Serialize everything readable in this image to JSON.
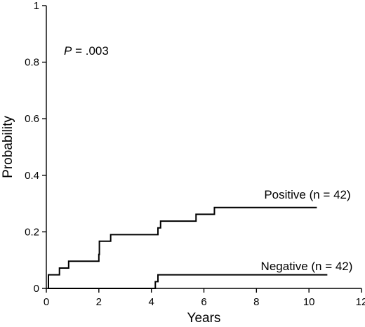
{
  "chart_data": {
    "type": "line",
    "step": true,
    "xlabel": "Years",
    "ylabel": "Probability",
    "xlim": [
      0,
      12
    ],
    "ylim": [
      0,
      1
    ],
    "xticks": [
      0,
      2,
      4,
      6,
      8,
      10,
      12
    ],
    "yticks": [
      0,
      0.2,
      0.4,
      0.6,
      0.8,
      1
    ],
    "ytick_labels": [
      "0",
      "0.2",
      "0.4",
      "0.6",
      "0.8",
      "1"
    ],
    "grid": false,
    "annotation": {
      "p_symbol": "P",
      "p_value": " = .003"
    },
    "series": [
      {
        "name": "Positive (n = 42)",
        "x": [
          0.05,
          0.08,
          0.5,
          0.85,
          2.0,
          2.02,
          2.45,
          4.25,
          4.35,
          5.7,
          6.4,
          10.3
        ],
        "y": [
          0,
          0.048,
          0.072,
          0.096,
          0.12,
          0.167,
          0.19,
          0.214,
          0.238,
          0.262,
          0.286,
          0.286
        ]
      },
      {
        "name": "Negative (n = 42)",
        "x": [
          0.05,
          4.15,
          4.25,
          10.7
        ],
        "y": [
          0,
          0.024,
          0.048,
          0.048
        ]
      }
    ]
  }
}
